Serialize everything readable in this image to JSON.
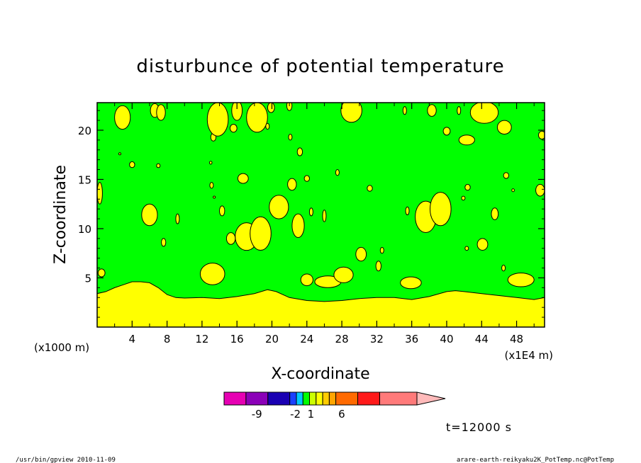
{
  "chart_data": {
    "type": "heatmap",
    "title": "disturbunce of potential temperature",
    "xlabel": "X-coordinate",
    "ylabel": "Z-coordinate",
    "x_unit_left": "(x1000 m)",
    "x_unit_right": "(x1E4 m)",
    "xlim": [
      0,
      51.2
    ],
    "ylim": [
      0,
      22.8
    ],
    "x_ticks": [
      "4",
      "8",
      "12",
      "16",
      "20",
      "24",
      "28",
      "32",
      "36",
      "40",
      "44",
      "48"
    ],
    "x_tick_values": [
      4,
      8,
      12,
      16,
      20,
      24,
      28,
      32,
      36,
      40,
      44,
      48
    ],
    "y_ticks": [
      "5",
      "10",
      "15",
      "20"
    ],
    "y_tick_values": [
      5,
      10,
      15,
      20
    ],
    "background_color": "#00ff00",
    "positive_color": "#ffff00",
    "boundary_layer_top": [
      [
        0,
        3.4
      ],
      [
        1,
        3.6
      ],
      [
        2,
        4.0
      ],
      [
        3,
        4.3
      ],
      [
        4,
        4.6
      ],
      [
        5,
        4.6
      ],
      [
        6,
        4.5
      ],
      [
        7,
        4.0
      ],
      [
        8,
        3.3
      ],
      [
        9,
        3.0
      ],
      [
        10,
        2.95
      ],
      [
        12,
        3.0
      ],
      [
        14,
        2.9
      ],
      [
        16,
        3.1
      ],
      [
        18,
        3.4
      ],
      [
        19.5,
        3.8
      ],
      [
        20.5,
        3.6
      ],
      [
        22,
        3.0
      ],
      [
        24,
        2.7
      ],
      [
        26,
        2.6
      ],
      [
        28,
        2.7
      ],
      [
        30,
        2.9
      ],
      [
        32,
        3.0
      ],
      [
        34,
        3.0
      ],
      [
        36,
        2.8
      ],
      [
        38,
        3.1
      ],
      [
        40,
        3.6
      ],
      [
        41,
        3.7
      ],
      [
        42,
        3.6
      ],
      [
        44,
        3.4
      ],
      [
        46,
        3.2
      ],
      [
        48,
        3.0
      ],
      [
        50,
        2.8
      ],
      [
        51.2,
        3.0
      ]
    ],
    "positive_blobs": [
      [
        2.9,
        21.3,
        0.9,
        1.2
      ],
      [
        6.6,
        22.0,
        0.5,
        0.7
      ],
      [
        7.3,
        21.8,
        0.5,
        0.8
      ],
      [
        13.3,
        19.3,
        0.3,
        0.4
      ],
      [
        13.0,
        16.7,
        0.15,
        0.15
      ],
      [
        4.0,
        16.5,
        0.3,
        0.3
      ],
      [
        2.6,
        17.6,
        0.1,
        0.1
      ],
      [
        7.0,
        16.4,
        0.2,
        0.2
      ],
      [
        13.4,
        13.2,
        0.1,
        0.1
      ],
      [
        0.3,
        13.6,
        0.3,
        1.1
      ],
      [
        0.5,
        5.5,
        0.4,
        0.4
      ],
      [
        6.0,
        11.4,
        0.9,
        1.1
      ],
      [
        7.6,
        8.6,
        0.25,
        0.4
      ],
      [
        9.2,
        11.0,
        0.2,
        0.5
      ],
      [
        13.2,
        5.4,
        1.4,
        1.1
      ],
      [
        14.3,
        11.8,
        0.3,
        0.5
      ],
      [
        13.1,
        14.4,
        0.2,
        0.3
      ],
      [
        13.8,
        21.1,
        1.2,
        1.7
      ],
      [
        16.0,
        22.0,
        0.6,
        1.0
      ],
      [
        15.6,
        20.2,
        0.4,
        0.4
      ],
      [
        18.3,
        21.3,
        1.2,
        1.5
      ],
      [
        19.9,
        22.3,
        0.4,
        0.5
      ],
      [
        22.0,
        22.5,
        0.3,
        0.5
      ],
      [
        19.5,
        20.4,
        0.2,
        0.3
      ],
      [
        22.1,
        19.3,
        0.2,
        0.3
      ],
      [
        23.2,
        17.8,
        0.3,
        0.4
      ],
      [
        16.7,
        15.1,
        0.6,
        0.5
      ],
      [
        17.1,
        9.2,
        1.3,
        1.4
      ],
      [
        15.3,
        9.0,
        0.5,
        0.6
      ],
      [
        18.7,
        9.5,
        1.2,
        1.7
      ],
      [
        20.8,
        12.2,
        1.1,
        1.2
      ],
      [
        22.3,
        14.5,
        0.5,
        0.6
      ],
      [
        23.0,
        10.3,
        0.7,
        1.2
      ],
      [
        24.0,
        15.1,
        0.3,
        0.3
      ],
      [
        24.5,
        11.7,
        0.2,
        0.4
      ],
      [
        24.0,
        4.8,
        0.7,
        0.6
      ],
      [
        26.4,
        4.6,
        1.5,
        0.6
      ],
      [
        28.2,
        5.3,
        1.1,
        0.8
      ],
      [
        26.0,
        11.3,
        0.2,
        0.6
      ],
      [
        29.1,
        22.0,
        1.2,
        1.2
      ],
      [
        27.5,
        15.7,
        0.2,
        0.3
      ],
      [
        31.2,
        14.1,
        0.3,
        0.3
      ],
      [
        30.2,
        7.4,
        0.6,
        0.7
      ],
      [
        32.2,
        6.2,
        0.3,
        0.5
      ],
      [
        32.6,
        7.8,
        0.2,
        0.3
      ],
      [
        35.9,
        4.5,
        1.2,
        0.6
      ],
      [
        35.2,
        22.0,
        0.2,
        0.4
      ],
      [
        38.3,
        22.0,
        0.5,
        0.6
      ],
      [
        35.5,
        11.8,
        0.2,
        0.4
      ],
      [
        37.6,
        11.2,
        1.2,
        1.6
      ],
      [
        39.3,
        12.0,
        1.2,
        1.7
      ],
      [
        40.0,
        19.9,
        0.4,
        0.4
      ],
      [
        42.3,
        19.0,
        0.9,
        0.5
      ],
      [
        41.4,
        22.0,
        0.2,
        0.4
      ],
      [
        44.3,
        21.8,
        1.6,
        1.1
      ],
      [
        46.6,
        20.3,
        0.8,
        0.7
      ],
      [
        46.8,
        15.4,
        0.3,
        0.3
      ],
      [
        42.4,
        14.2,
        0.3,
        0.3
      ],
      [
        44.1,
        8.4,
        0.6,
        0.6
      ],
      [
        42.3,
        8.0,
        0.2,
        0.2
      ],
      [
        45.5,
        11.5,
        0.4,
        0.6
      ],
      [
        48.5,
        4.8,
        1.5,
        0.7
      ],
      [
        46.5,
        6.0,
        0.2,
        0.3
      ],
      [
        47.6,
        13.9,
        0.15,
        0.15
      ],
      [
        50.7,
        13.9,
        0.5,
        0.6
      ],
      [
        50.9,
        19.5,
        0.4,
        0.4
      ],
      [
        41.9,
        13.1,
        0.2,
        0.2
      ]
    ],
    "colorbar": {
      "colors": [
        "#e600b3",
        "#8b00b8",
        "#1a00b3",
        "#1a40ff",
        "#00c8ff",
        "#00ff00",
        "#ccff00",
        "#ffff00",
        "#ffcc00",
        "#ffa500",
        "#ff6a00",
        "#ff1a1a",
        "#ff7a7a",
        "#ffbaba"
      ],
      "weights": [
        1,
        1,
        1,
        0.3,
        0.3,
        0.3,
        0.3,
        0.3,
        0.3,
        0.3,
        1,
        1,
        1.7,
        1.3
      ],
      "labels": [
        "-9",
        "-2",
        "1",
        "6"
      ],
      "label_positions": [
        0.17,
        0.37,
        0.45,
        0.61
      ]
    }
  },
  "annotations": {
    "time": "t=12000 s",
    "footer_left": "/usr/bin/gpview  2010-11-09",
    "footer_right": "arare-earth-reikyaku2K_PotTemp.nc@PotTemp"
  }
}
